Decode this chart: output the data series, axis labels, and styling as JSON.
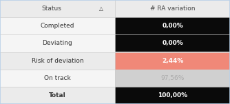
{
  "rows": [
    {
      "label": "Status",
      "value": "# RA variation",
      "label_bg": "#ebebeb",
      "value_bg": "#ebebeb",
      "label_color": "#444444",
      "value_color": "#444444",
      "label_bold": false,
      "value_bold": false,
      "is_header": true
    },
    {
      "label": "Completed",
      "value": "0,00%",
      "label_bg": "#f5f5f5",
      "value_bg": "#0a0a0a",
      "label_color": "#333333",
      "value_color": "#ffffff",
      "label_bold": false,
      "value_bold": true,
      "is_header": false
    },
    {
      "label": "Deviating",
      "value": "0,00%",
      "label_bg": "#f5f5f5",
      "value_bg": "#0a0a0a",
      "label_color": "#333333",
      "value_color": "#ffffff",
      "label_bold": false,
      "value_bold": true,
      "is_header": false
    },
    {
      "label": "Risk of deviation",
      "value": "2,44%",
      "label_bg": "#ebebeb",
      "value_bg": "#f08878",
      "label_color": "#333333",
      "value_color": "#ffffff",
      "label_bold": false,
      "value_bold": true,
      "is_header": false
    },
    {
      "label": "On track",
      "value": "97,56%",
      "label_bg": "#f5f5f5",
      "value_bg": "#d0d0d0",
      "label_color": "#333333",
      "value_color": "#aaaaaa",
      "label_bold": false,
      "value_bold": false,
      "is_header": false
    },
    {
      "label": "Total",
      "value": "100,00%",
      "label_bg": "#ebebeb",
      "value_bg": "#0a0a0a",
      "label_color": "#333333",
      "value_color": "#ffffff",
      "label_bold": true,
      "value_bold": true,
      "is_header": false
    }
  ],
  "col_split": 0.5,
  "outer_border_color": "#b8d0e8",
  "outer_border_lw": 1.2,
  "row_line_color": "#cccccc",
  "row_line_lw": 0.5,
  "font_size": 6.5,
  "sort_arrow": "△",
  "fig_width": 3.34,
  "fig_height": 1.51,
  "dpi": 100
}
